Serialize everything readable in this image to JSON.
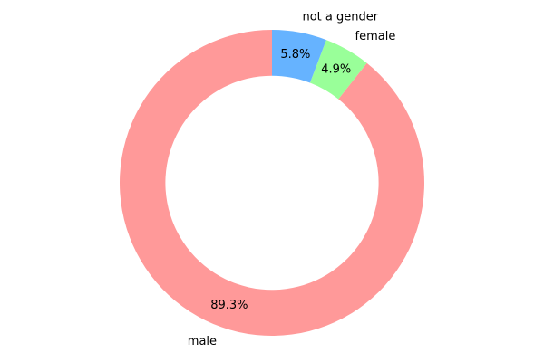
{
  "chart_data": {
    "type": "pie",
    "style": "donut",
    "categories": [
      "male",
      "female",
      "not a gender"
    ],
    "values": [
      89.3,
      4.9,
      5.8
    ],
    "value_labels": [
      "89.3%",
      "4.9%",
      "5.8%"
    ],
    "colors": [
      "#ff9999",
      "#99ff99",
      "#66b3ff"
    ],
    "start_angle_deg": 90,
    "direction": "counterclockwise",
    "legend": "none"
  }
}
